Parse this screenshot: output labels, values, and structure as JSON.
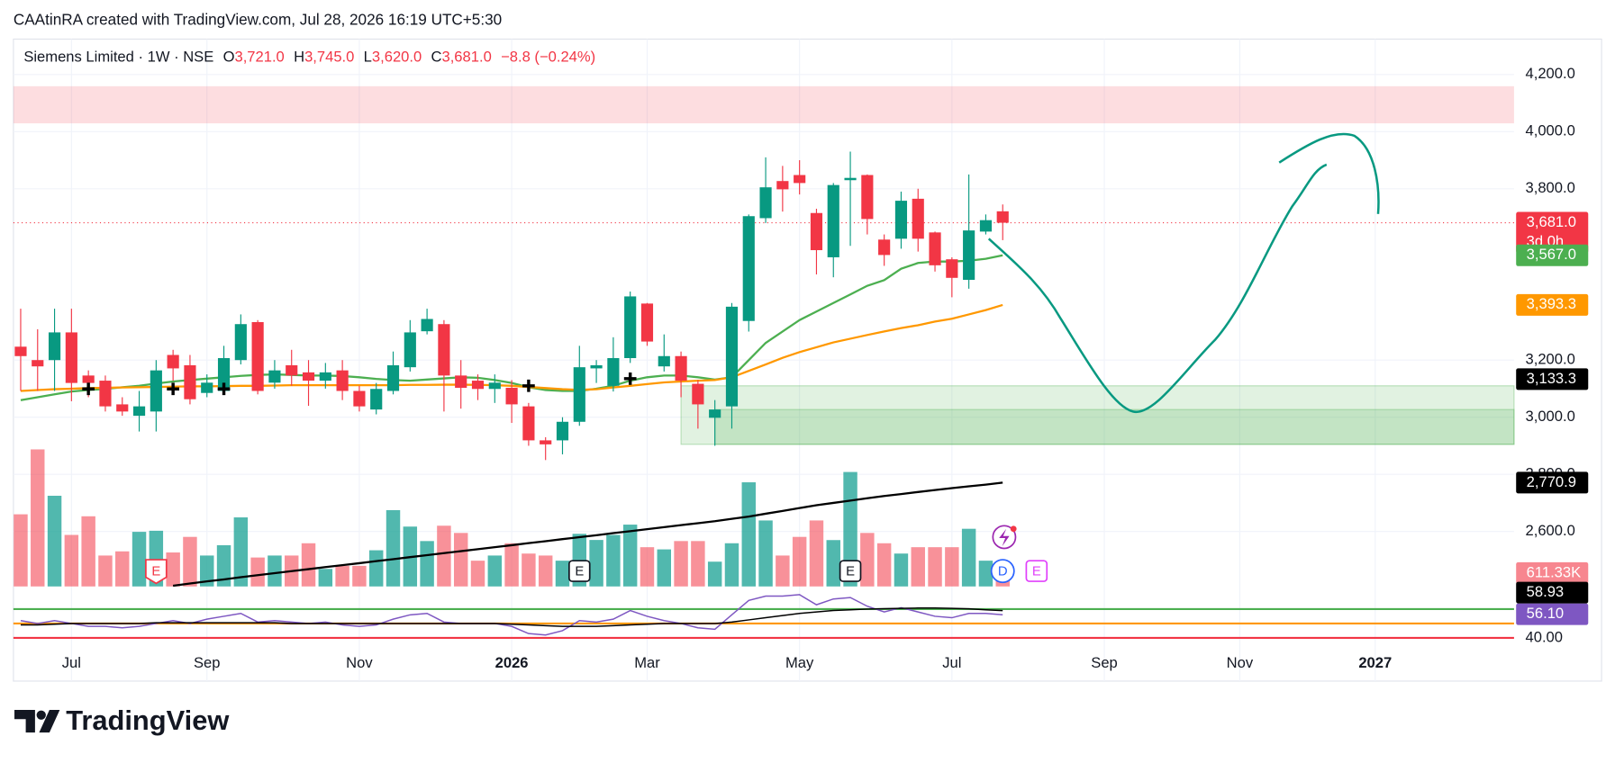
{
  "header": {
    "credit": "CAAtinRA created with TradingView.com, Jul 28, 2026 16:19 UTC+5:30"
  },
  "footer": {
    "brand": "TradingView"
  },
  "chart_data": {
    "type": "candlestick",
    "symbol": "Siemens Limited · 1W · NSE",
    "ohlc": [
      {
        "key": "O",
        "value": "3,721.0"
      },
      {
        "key": "H",
        "value": "3,745.0"
      },
      {
        "key": "L",
        "value": "3,620.0"
      },
      {
        "key": "C",
        "value": "3,681.0"
      }
    ],
    "change": "−8.8 (−0.24%)",
    "xlim": [
      -0.43,
      88.2
    ],
    "xticks": [
      {
        "value": 3,
        "label": "Jul"
      },
      {
        "value": 11,
        "label": "Sep"
      },
      {
        "value": 20,
        "label": "Nov"
      },
      {
        "value": 29,
        "label": "2026"
      },
      {
        "value": 37,
        "label": "Mar"
      },
      {
        "value": 46,
        "label": "May"
      },
      {
        "value": 55,
        "label": "Jul"
      },
      {
        "value": 64,
        "label": "Sep"
      },
      {
        "value": 72,
        "label": "Nov"
      },
      {
        "value": 80,
        "label": "2027"
      }
    ],
    "ylim": [
      2076,
      4324
    ],
    "yticks": [
      {
        "value": 4200,
        "label": "4,200.0"
      },
      {
        "value": 4000,
        "label": "4,000.0"
      },
      {
        "value": 3800,
        "label": "3,800.0"
      },
      {
        "value": 3200,
        "label": "3,200.0"
      },
      {
        "value": 3000,
        "label": "3,000.0"
      },
      {
        "value": 2800,
        "label": "2,800.0"
      },
      {
        "value": 2600,
        "label": "2,600.0"
      }
    ],
    "grid": true,
    "up_color": "#089981",
    "down_color": "#f23645",
    "candles": [
      {
        "open": 3247,
        "high": 3380,
        "low": 3092,
        "close": 3214
      },
      {
        "open": 3200,
        "high": 3308,
        "low": 3092,
        "close": 3178
      },
      {
        "open": 3200,
        "high": 3380,
        "low": 3092,
        "close": 3297
      },
      {
        "open": 3297,
        "high": 3380,
        "low": 3056,
        "close": 3120
      },
      {
        "open": 3146,
        "high": 3164,
        "low": 3070,
        "close": 3120
      },
      {
        "open": 3128,
        "high": 3146,
        "low": 3020,
        "close": 3038
      },
      {
        "open": 3045,
        "high": 3070,
        "low": 3005,
        "close": 3020
      },
      {
        "open": 3005,
        "high": 3092,
        "low": 2950,
        "close": 3038
      },
      {
        "open": 3020,
        "high": 3200,
        "low": 2950,
        "close": 3164
      },
      {
        "open": 3218,
        "high": 3236,
        "low": 3128,
        "close": 3171
      },
      {
        "open": 3182,
        "high": 3218,
        "low": 3045,
        "close": 3063
      },
      {
        "open": 3085,
        "high": 3150,
        "low": 3070,
        "close": 3121
      },
      {
        "open": 3092,
        "high": 3250,
        "low": 3085,
        "close": 3207
      },
      {
        "open": 3200,
        "high": 3360,
        "low": 3185,
        "close": 3326
      },
      {
        "open": 3333,
        "high": 3340,
        "low": 3080,
        "close": 3092
      },
      {
        "open": 3121,
        "high": 3200,
        "low": 3100,
        "close": 3164
      },
      {
        "open": 3182,
        "high": 3236,
        "low": 3110,
        "close": 3146
      },
      {
        "open": 3157,
        "high": 3200,
        "low": 3040,
        "close": 3128
      },
      {
        "open": 3128,
        "high": 3190,
        "low": 3100,
        "close": 3157
      },
      {
        "open": 3164,
        "high": 3200,
        "low": 3060,
        "close": 3092
      },
      {
        "open": 3092,
        "high": 3110,
        "low": 3020,
        "close": 3038
      },
      {
        "open": 3027,
        "high": 3120,
        "low": 3010,
        "close": 3099
      },
      {
        "open": 3092,
        "high": 3230,
        "low": 3080,
        "close": 3182
      },
      {
        "open": 3175,
        "high": 3340,
        "low": 3160,
        "close": 3297
      },
      {
        "open": 3301,
        "high": 3380,
        "low": 3290,
        "close": 3344
      },
      {
        "open": 3326,
        "high": 3340,
        "low": 3020,
        "close": 3146
      },
      {
        "open": 3146,
        "high": 3200,
        "low": 3030,
        "close": 3103
      },
      {
        "open": 3128,
        "high": 3150,
        "low": 3060,
        "close": 3099
      },
      {
        "open": 3099,
        "high": 3150,
        "low": 3050,
        "close": 3121
      },
      {
        "open": 3103,
        "high": 3130,
        "low": 2980,
        "close": 3045
      },
      {
        "open": 3038,
        "high": 3050,
        "low": 2900,
        "close": 2919
      },
      {
        "open": 2919,
        "high": 2930,
        "low": 2850,
        "close": 2905
      },
      {
        "open": 2919,
        "high": 3000,
        "low": 2870,
        "close": 2984
      },
      {
        "open": 2984,
        "high": 3250,
        "low": 2970,
        "close": 3175
      },
      {
        "open": 3171,
        "high": 3200,
        "low": 3120,
        "close": 3182
      },
      {
        "open": 3110,
        "high": 3280,
        "low": 3090,
        "close": 3207
      },
      {
        "open": 3207,
        "high": 3440,
        "low": 3190,
        "close": 3423
      },
      {
        "open": 3398,
        "high": 3400,
        "low": 3250,
        "close": 3265
      },
      {
        "open": 3178,
        "high": 3290,
        "low": 3160,
        "close": 3214
      },
      {
        "open": 3214,
        "high": 3230,
        "low": 3070,
        "close": 3128
      },
      {
        "open": 3117,
        "high": 3130,
        "low": 2960,
        "close": 3045
      },
      {
        "open": 2998,
        "high": 3060,
        "low": 2900,
        "close": 3027
      },
      {
        "open": 3038,
        "high": 3400,
        "low": 2960,
        "close": 3387
      },
      {
        "open": 3337,
        "high": 3710,
        "low": 3300,
        "close": 3704
      },
      {
        "open": 3697,
        "high": 3910,
        "low": 3680,
        "close": 3805
      },
      {
        "open": 3827,
        "high": 3880,
        "low": 3720,
        "close": 3798
      },
      {
        "open": 3848,
        "high": 3900,
        "low": 3780,
        "close": 3820
      },
      {
        "open": 3715,
        "high": 3730,
        "low": 3500,
        "close": 3585
      },
      {
        "open": 3560,
        "high": 3820,
        "low": 3490,
        "close": 3813
      },
      {
        "open": 3830,
        "high": 3930,
        "low": 3600,
        "close": 3838
      },
      {
        "open": 3848,
        "high": 3850,
        "low": 3640,
        "close": 3694
      },
      {
        "open": 3622,
        "high": 3640,
        "low": 3530,
        "close": 3568
      },
      {
        "open": 3625,
        "high": 3790,
        "low": 3590,
        "close": 3758
      },
      {
        "open": 3765,
        "high": 3800,
        "low": 3580,
        "close": 3625
      },
      {
        "open": 3647,
        "high": 3650,
        "low": 3510,
        "close": 3532
      },
      {
        "open": 3553,
        "high": 3560,
        "low": 3420,
        "close": 3488
      },
      {
        "open": 3481,
        "high": 3850,
        "low": 3450,
        "close": 3654
      },
      {
        "open": 3650,
        "high": 3710,
        "low": 3640,
        "close": 3690
      },
      {
        "open": 3721,
        "high": 3745,
        "low": 3620,
        "close": 3681
      }
    ],
    "series": [
      {
        "color": "#4caf50",
        "values": [
          3060,
          3070,
          3080,
          3090,
          3095,
          3099,
          3105,
          3110,
          3118,
          3125,
          3130,
          3135,
          3140,
          3145,
          3148,
          3150,
          3148,
          3146,
          3146,
          3144,
          3140,
          3134,
          3130,
          3128,
          3132,
          3136,
          3140,
          3138,
          3130,
          3120,
          3105,
          3095,
          3092,
          3092,
          3100,
          3110,
          3128,
          3140,
          3146,
          3146,
          3140,
          3132,
          3140,
          3200,
          3260,
          3300,
          3340,
          3370,
          3400,
          3430,
          3460,
          3480,
          3520,
          3540,
          3545,
          3545,
          3548,
          3555,
          3567
        ]
      },
      {
        "color": "#ff9800",
        "values": [
          3092,
          3095,
          3098,
          3100,
          3102,
          3103,
          3104,
          3105,
          3106,
          3107,
          3108,
          3108,
          3109,
          3110,
          3110,
          3111,
          3112,
          3112,
          3112,
          3112,
          3112,
          3112,
          3112,
          3113,
          3113,
          3114,
          3114,
          3113,
          3112,
          3110,
          3106,
          3102,
          3098,
          3096,
          3098,
          3104,
          3110,
          3116,
          3122,
          3125,
          3128,
          3130,
          3140,
          3162,
          3185,
          3208,
          3228,
          3245,
          3262,
          3275,
          3288,
          3300,
          3312,
          3322,
          3335,
          3345,
          3360,
          3375,
          3393
        ]
      },
      {
        "color": "#000000",
        "values": [
          null,
          null,
          null,
          null,
          null,
          null,
          null,
          null,
          null,
          2410,
          2418,
          2425,
          2432,
          2440,
          2447,
          2454,
          2461,
          2468,
          2475,
          2482,
          2489,
          2496,
          2503,
          2510,
          2517,
          2524,
          2531,
          2538,
          2545,
          2552,
          2559,
          2566,
          2573,
          2580,
          2587,
          2594,
          2601,
          2608,
          2615,
          2622,
          2629,
          2636,
          2644,
          2652,
          2662,
          2672,
          2682,
          2692,
          2700,
          2708,
          2716,
          2724,
          2731,
          2738,
          2745,
          2752,
          2758,
          2764,
          2770.9
        ]
      }
    ],
    "price_labels": [
      {
        "value": 3681,
        "label": "3,681.0",
        "sub": "3d 0h",
        "color": "#f23645"
      },
      {
        "value": 3567,
        "label": "3,567.0",
        "color": "#4caf50"
      },
      {
        "value": 3393.3,
        "label": "3,393.3",
        "color": "#ff9800"
      },
      {
        "value": 3133.3,
        "label": "3,133.3",
        "color": "#000000"
      },
      {
        "value": 2770.9,
        "label": "2,770.9",
        "color": "#000000"
      }
    ],
    "last_price": 3681,
    "zones": [
      {
        "top": 4159,
        "bottom": 4029,
        "start": -0.43,
        "color": "rgba(242,54,69,0.17)"
      },
      {
        "top": 3110,
        "bottom": 2905,
        "start": 39,
        "color": "rgba(76,175,80,0.17)"
      },
      {
        "top": 3027,
        "bottom": 2905,
        "start": 41,
        "color": "rgba(76,175,80,0.2)"
      }
    ],
    "crosses": [
      {
        "index": 4,
        "price": 3099
      },
      {
        "index": 9,
        "price": 3099
      },
      {
        "index": 12,
        "price": 3099
      },
      {
        "index": 30,
        "price": 3110
      },
      {
        "index": 36,
        "price": 3135
      }
    ],
    "volume": {
      "lim": [
        0,
        12200
      ],
      "values": [
        3290,
        6250,
        4136,
        2350,
        3200,
        1410,
        1600,
        2490,
        2540,
        1550,
        2260,
        1410,
        1880,
        3150,
        1320,
        1410,
        1410,
        1970,
        800,
        940,
        940,
        1650,
        3480,
        2730,
        2070,
        2770,
        2440,
        1175,
        1410,
        1970,
        1500,
        1410,
        1175,
        2400,
        2120,
        2350,
        2820,
        1790,
        1690,
        2070,
        2070,
        1130,
        1970,
        4750,
        3010,
        1410,
        2260,
        3010,
        2115,
        5220,
        2440,
        1970,
        1500,
        1790,
        1790,
        1790,
        2630,
        1175,
        611.33
      ],
      "last_label": "611.33K"
    },
    "events": [
      {
        "index": 8,
        "label": "E"
      },
      {
        "index": 33,
        "label": "E"
      },
      {
        "index": 49,
        "label": "E"
      },
      {
        "index": 58,
        "label": "D"
      },
      {
        "index": 60,
        "label": "E"
      }
    ],
    "rsi": {
      "lim": [
        20,
        90
      ],
      "levels": [
        {
          "value": 60,
          "color": "#4caf50"
        },
        {
          "value": 50,
          "color": "#ff9800"
        },
        {
          "value": 40,
          "color": "#f23645"
        }
      ],
      "ticks": [
        {
          "value": 40,
          "label": "40.00"
        }
      ],
      "series": [
        {
          "color": "#7e57c2",
          "values": [
            52,
            50,
            52,
            50,
            48,
            48,
            47,
            48,
            50,
            52,
            50,
            53,
            55,
            57,
            51,
            52,
            51,
            50,
            51,
            49,
            48,
            49,
            53,
            56,
            57,
            51,
            50,
            50,
            50,
            48,
            43,
            42,
            45,
            52,
            51,
            53,
            59,
            55,
            52,
            50,
            47,
            46,
            56,
            66,
            69,
            69,
            70,
            63,
            67,
            68,
            62,
            58,
            61,
            58,
            55,
            54,
            57,
            57,
            56.1
          ],
          "last_label": "56.10"
        },
        {
          "color": "#000000",
          "values": [
            49,
            49,
            49.5,
            50,
            50,
            50,
            50,
            50,
            50.5,
            50.5,
            50.5,
            50.5,
            50.5,
            50.5,
            50.5,
            50.5,
            50,
            50,
            50,
            50,
            50,
            50,
            50,
            50,
            50,
            50,
            50,
            50,
            50,
            49.5,
            49,
            48.5,
            48,
            48,
            48,
            48.5,
            49,
            49.5,
            50,
            50,
            50,
            50,
            51,
            52.5,
            54,
            55.5,
            57,
            58,
            59,
            59.5,
            60,
            60.3,
            60.5,
            60.7,
            60.7,
            60.5,
            60.2,
            59.5,
            58.93
          ],
          "last_label": "58.93"
        }
      ]
    }
  }
}
